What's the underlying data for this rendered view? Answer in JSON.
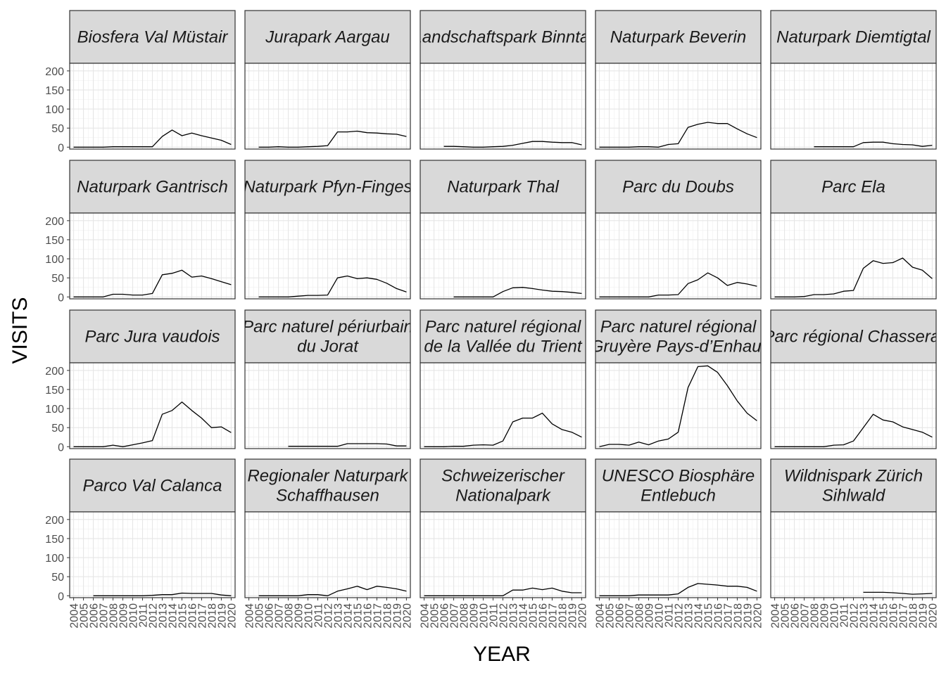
{
  "chart_data": {
    "type": "line",
    "layout": "facet-grid",
    "xlabel": "YEAR",
    "ylabel": "VISITS",
    "x_ticks": [
      2004,
      2005,
      2006,
      2007,
      2008,
      2009,
      2010,
      2011,
      2012,
      2013,
      2014,
      2015,
      2016,
      2017,
      2018,
      2019,
      2020
    ],
    "y_ticks": [
      0,
      50,
      100,
      150,
      200
    ],
    "xlim": [
      2003.6,
      2020.4
    ],
    "ylim": [
      -5,
      220
    ],
    "grid": true,
    "line_color": "#000000",
    "facets": [
      {
        "title": [
          "Biosfera Val Müstair"
        ],
        "x": [
          2004,
          2005,
          2006,
          2007,
          2008,
          2009,
          2010,
          2011,
          2012,
          2013,
          2014,
          2015,
          2016,
          2017,
          2018,
          2019,
          2020
        ],
        "y": [
          0,
          0,
          0,
          0,
          1,
          1,
          1,
          1,
          1,
          28,
          45,
          30,
          37,
          30,
          24,
          18,
          7
        ]
      },
      {
        "title": [
          "Jurapark Aargau"
        ],
        "x": [
          2005,
          2006,
          2007,
          2008,
          2009,
          2010,
          2011,
          2012,
          2013,
          2014,
          2015,
          2016,
          2017,
          2018,
          2019,
          2020
        ],
        "y": [
          0,
          0,
          1,
          0,
          0,
          1,
          2,
          4,
          40,
          40,
          42,
          38,
          37,
          35,
          34,
          28
        ]
      },
      {
        "title": [
          "Landschaftspark Binntal"
        ],
        "x": [
          2006,
          2007,
          2008,
          2009,
          2010,
          2011,
          2012,
          2013,
          2014,
          2015,
          2016,
          2017,
          2018,
          2019,
          2020
        ],
        "y": [
          2,
          2,
          1,
          0,
          0,
          1,
          2,
          5,
          10,
          15,
          15,
          13,
          12,
          12,
          6
        ]
      },
      {
        "title": [
          "Naturpark Beverin"
        ],
        "x": [
          2004,
          2005,
          2006,
          2007,
          2008,
          2009,
          2010,
          2011,
          2012,
          2013,
          2014,
          2015,
          2016,
          2017,
          2018,
          2019,
          2020
        ],
        "y": [
          0,
          0,
          0,
          0,
          1,
          1,
          0,
          7,
          9,
          52,
          60,
          65,
          62,
          62,
          48,
          35,
          25
        ]
      },
      {
        "title": [
          "Naturpark Diemtigtal"
        ],
        "x": [
          2008,
          2009,
          2010,
          2011,
          2012,
          2013,
          2014,
          2015,
          2016,
          2017,
          2018,
          2019,
          2020
        ],
        "y": [
          1,
          1,
          1,
          1,
          1,
          12,
          13,
          13,
          9,
          7,
          6,
          2,
          5
        ]
      },
      {
        "title": [
          "Naturpark Gantrisch"
        ],
        "x": [
          2004,
          2005,
          2006,
          2007,
          2008,
          2009,
          2010,
          2011,
          2012,
          2013,
          2014,
          2015,
          2016,
          2017,
          2018,
          2019,
          2020
        ],
        "y": [
          0,
          0,
          0,
          0,
          7,
          7,
          5,
          5,
          9,
          58,
          62,
          70,
          52,
          55,
          48,
          40,
          32
        ]
      },
      {
        "title": [
          "Naturpark Pfyn-Finges"
        ],
        "x": [
          2005,
          2006,
          2007,
          2008,
          2009,
          2010,
          2011,
          2012,
          2013,
          2014,
          2015,
          2016,
          2017,
          2018,
          2019,
          2020
        ],
        "y": [
          0,
          0,
          0,
          0,
          2,
          4,
          4,
          5,
          50,
          55,
          48,
          50,
          46,
          36,
          22,
          13
        ]
      },
      {
        "title": [
          "Naturpark Thal"
        ],
        "x": [
          2007,
          2008,
          2009,
          2010,
          2011,
          2012,
          2013,
          2014,
          2015,
          2016,
          2017,
          2018,
          2019,
          2020
        ],
        "y": [
          0,
          0,
          0,
          0,
          0,
          14,
          24,
          25,
          22,
          18,
          15,
          14,
          12,
          9
        ]
      },
      {
        "title": [
          "Parc du Doubs"
        ],
        "x": [
          2004,
          2005,
          2006,
          2007,
          2008,
          2009,
          2010,
          2011,
          2012,
          2013,
          2014,
          2015,
          2016,
          2017,
          2018,
          2019,
          2020
        ],
        "y": [
          0,
          0,
          0,
          0,
          0,
          0,
          5,
          5,
          6,
          35,
          45,
          63,
          50,
          30,
          38,
          34,
          28
        ]
      },
      {
        "title": [
          "Parc Ela"
        ],
        "x": [
          2004,
          2005,
          2006,
          2007,
          2008,
          2009,
          2010,
          2011,
          2012,
          2013,
          2014,
          2015,
          2016,
          2017,
          2018,
          2019,
          2020
        ],
        "y": [
          0,
          0,
          0,
          1,
          6,
          6,
          8,
          15,
          17,
          75,
          95,
          88,
          90,
          102,
          78,
          70,
          48
        ]
      },
      {
        "title": [
          "Parc Jura vaudois"
        ],
        "x": [
          2004,
          2005,
          2006,
          2007,
          2008,
          2009,
          2010,
          2011,
          2012,
          2013,
          2014,
          2015,
          2016,
          2017,
          2018,
          2019,
          2020
        ],
        "y": [
          0,
          0,
          0,
          0,
          4,
          0,
          5,
          10,
          16,
          85,
          95,
          117,
          95,
          75,
          50,
          52,
          37
        ]
      },
      {
        "title": [
          "Parc naturel périurbain",
          "du Jorat"
        ],
        "x": [
          2008,
          2009,
          2010,
          2011,
          2012,
          2013,
          2014,
          2015,
          2016,
          2017,
          2018,
          2019,
          2020
        ],
        "y": [
          1,
          1,
          1,
          1,
          1,
          1,
          8,
          8,
          8,
          8,
          7,
          2,
          2
        ]
      },
      {
        "title": [
          "Parc naturel régional",
          "de la Vallée du Trient"
        ],
        "x": [
          2004,
          2005,
          2006,
          2007,
          2008,
          2009,
          2010,
          2011,
          2012,
          2013,
          2014,
          2015,
          2016,
          2017,
          2018,
          2019,
          2020
        ],
        "y": [
          0,
          0,
          0,
          1,
          1,
          4,
          5,
          4,
          15,
          65,
          75,
          75,
          88,
          60,
          45,
          38,
          25
        ]
      },
      {
        "title": [
          "Parc naturel régional",
          "Gruyère Pays-d’Enhaut"
        ],
        "x": [
          2004,
          2005,
          2006,
          2007,
          2008,
          2009,
          2010,
          2011,
          2012,
          2013,
          2014,
          2015,
          2016,
          2017,
          2018,
          2019,
          2020
        ],
        "y": [
          0,
          6,
          6,
          4,
          12,
          5,
          15,
          20,
          38,
          155,
          210,
          212,
          195,
          160,
          120,
          88,
          68
        ]
      },
      {
        "title": [
          "Parc régional Chasseral"
        ],
        "x": [
          2004,
          2005,
          2006,
          2007,
          2008,
          2009,
          2010,
          2011,
          2012,
          2013,
          2014,
          2015,
          2016,
          2017,
          2018,
          2019,
          2020
        ],
        "y": [
          0,
          0,
          0,
          0,
          0,
          0,
          4,
          5,
          15,
          50,
          85,
          70,
          65,
          52,
          45,
          38,
          25
        ]
      },
      {
        "title": [
          "Parco Val Calanca"
        ],
        "x": [
          2006,
          2007,
          2008,
          2009,
          2010,
          2011,
          2012,
          2013,
          2014,
          2015,
          2016,
          2017,
          2018,
          2019,
          2020
        ],
        "y": [
          0,
          0,
          0,
          0,
          0,
          0,
          1,
          3,
          3,
          7,
          6,
          6,
          6,
          2,
          0
        ]
      },
      {
        "title": [
          "Regionaler Naturpark",
          "Schaffhausen"
        ],
        "x": [
          2005,
          2006,
          2007,
          2008,
          2009,
          2010,
          2011,
          2012,
          2013,
          2014,
          2015,
          2016,
          2017,
          2018,
          2019,
          2020
        ],
        "y": [
          0,
          0,
          0,
          0,
          0,
          3,
          3,
          0,
          12,
          18,
          25,
          16,
          25,
          22,
          18,
          12
        ]
      },
      {
        "title": [
          "Schweizerischer",
          "Nationalpark"
        ],
        "x": [
          2004,
          2005,
          2006,
          2007,
          2008,
          2009,
          2010,
          2011,
          2012,
          2013,
          2014,
          2015,
          2016,
          2017,
          2018,
          2019,
          2020
        ],
        "y": [
          0,
          0,
          0,
          0,
          0,
          0,
          0,
          0,
          0,
          15,
          15,
          20,
          16,
          20,
          12,
          8,
          8
        ]
      },
      {
        "title": [
          "UNESCO Biosphäre",
          "Entlebuch"
        ],
        "x": [
          2004,
          2005,
          2006,
          2007,
          2008,
          2009,
          2010,
          2011,
          2012,
          2013,
          2014,
          2015,
          2016,
          2017,
          2018,
          2019,
          2020
        ],
        "y": [
          0,
          0,
          0,
          0,
          2,
          2,
          2,
          2,
          5,
          22,
          32,
          30,
          28,
          25,
          25,
          22,
          12
        ]
      },
      {
        "title": [
          "Wildnispark Zürich",
          "Sihlwald"
        ],
        "x": [
          2013,
          2014,
          2015,
          2016,
          2017,
          2018,
          2019,
          2020
        ],
        "y": [
          9,
          9,
          9,
          8,
          6,
          4,
          5,
          6
        ]
      }
    ]
  }
}
